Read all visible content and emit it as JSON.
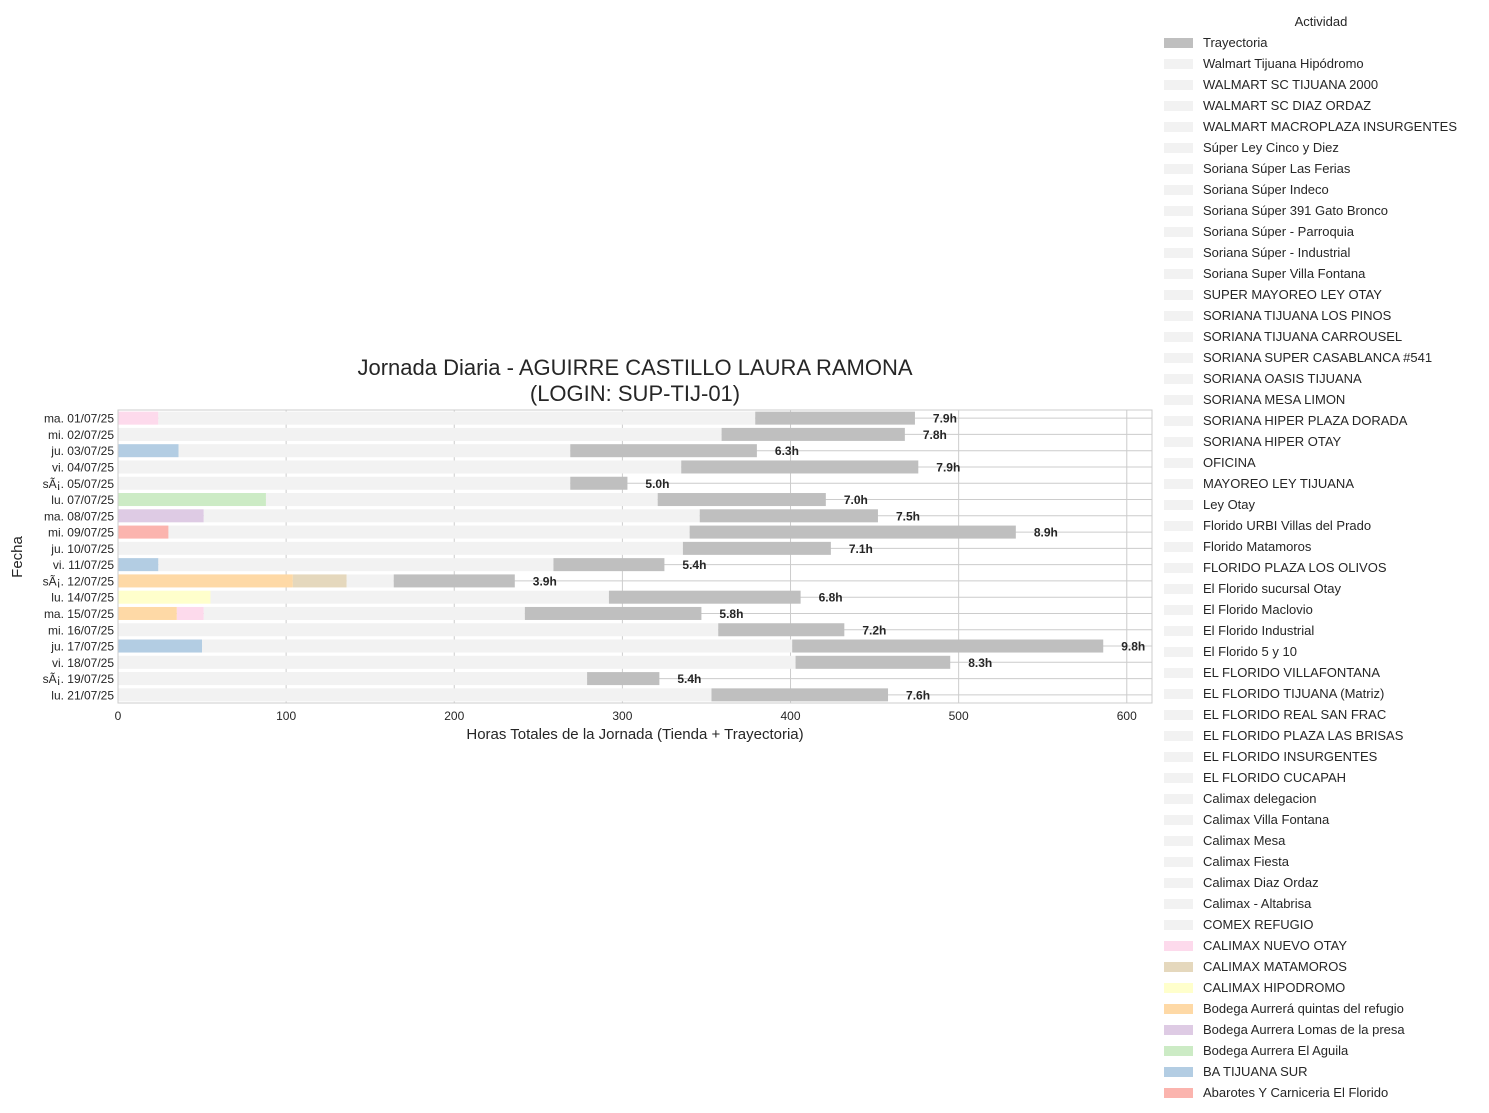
{
  "chart_data": {
    "type": "bar",
    "orientation": "horizontal",
    "stacked": true,
    "title": "Jornada Diaria - AGUIRRE CASTILLO LAURA RAMONA",
    "subtitle": "(LOGIN: SUP-TIJ-01)",
    "xlabel": "Horas Totales de la Jornada (Tienda + Trayectoria)",
    "ylabel": "Fecha",
    "xlim": [
      0,
      615
    ],
    "xticks": [
      0,
      100,
      200,
      300,
      400,
      500,
      600
    ],
    "grid": true,
    "legend_title": "Actividad",
    "legend_position": "right",
    "colors": {
      "Trayectoria": "#bfbfbf",
      "store_default": "#f2f2f2",
      "CALIMAX NUEVO OTAY": "#fddaec",
      "CALIMAX MATAMOROS": "#e5d8bd",
      "CALIMAX HIPODROMO": "#ffffcc",
      "Bodega Aurrerá quintas del refugio": "#fed9a6",
      "Bodega Aurrera Lomas de la presa": "#decbe4",
      "Bodega Aurrera El Aguila": "#ccebc5",
      "BA TIJUANA SUR": "#b3cde3",
      "Abarotes Y Carniceria El Florido": "#fbb4ae"
    },
    "legend": [
      "Trayectoria",
      "Walmart Tijuana Hipódromo",
      "WALMART SC TIJUANA 2000",
      "WALMART SC DIAZ ORDAZ",
      "WALMART MACROPLAZA INSURGENTES",
      "Súper Ley Cinco y Diez",
      "Soriana Súper Las Ferias",
      "Soriana Súper Indeco",
      "Soriana Súper 391 Gato Bronco",
      "Soriana Súper - Parroquia",
      "Soriana Súper - Industrial",
      "Soriana Super Villa Fontana",
      "SUPER MAYOREO LEY OTAY",
      "SORIANA TIJUANA LOS PINOS",
      "SORIANA TIJUANA CARROUSEL",
      "SORIANA SUPER CASABLANCA #541",
      "SORIANA OASIS TIJUANA",
      "SORIANA MESA LIMON",
      "SORIANA HIPER PLAZA DORADA",
      "SORIANA HIPER OTAY",
      "OFICINA",
      "MAYOREO LEY TIJUANA",
      "Ley Otay",
      "Florido URBI Villas del Prado",
      "Florido Matamoros",
      "FLORIDO PLAZA LOS OLIVOS",
      "El Florido sucursal Otay",
      "El Florido Maclovio",
      "El Florido Industrial",
      "El Florido 5 y 10",
      "EL FLORIDO VILLAFONTANA",
      "EL FLORIDO TIJUANA (Matriz)",
      "EL FLORIDO REAL SAN FRAC",
      "EL FLORIDO PLAZA LAS BRISAS",
      "EL FLORIDO INSURGENTES",
      "EL FLORIDO CUCAPAH",
      "Calimax delegacion",
      "Calimax Villa Fontana",
      "Calimax Mesa",
      "Calimax Fiesta",
      "Calimax Diaz Ordaz",
      "Calimax - Altabrisa",
      "COMEX REFUGIO",
      "CALIMAX NUEVO OTAY",
      "CALIMAX MATAMOROS",
      "CALIMAX HIPODROMO",
      "Bodega Aurrerá quintas del refugio",
      "Bodega Aurrera Lomas de la presa",
      "Bodega Aurrera El Aguila",
      "BA TIJUANA SUR",
      "Abarotes Y Carniceria El Florido"
    ],
    "rows": [
      {
        "date": "lu. 21/07/25",
        "label": "7.6h",
        "segments": [
          {
            "activity": "store",
            "value": 353
          },
          {
            "activity": "Trayectoria",
            "value": 105
          }
        ]
      },
      {
        "date": "sÃ¡. 19/07/25",
        "label": "5.4h",
        "segments": [
          {
            "activity": "store",
            "value": 279
          },
          {
            "activity": "Trayectoria",
            "value": 43
          }
        ]
      },
      {
        "date": "vi. 18/07/25",
        "label": "8.3h",
        "segments": [
          {
            "activity": "store",
            "value": 403
          },
          {
            "activity": "Trayectoria",
            "value": 92
          }
        ]
      },
      {
        "date": "ju. 17/07/25",
        "label": "9.8h",
        "segments": [
          {
            "activity": "BA TIJUANA SUR",
            "value": 50
          },
          {
            "activity": "store",
            "value": 351
          },
          {
            "activity": "Trayectoria",
            "value": 185
          }
        ]
      },
      {
        "date": "mi. 16/07/25",
        "label": "7.2h",
        "segments": [
          {
            "activity": "store",
            "value": 357
          },
          {
            "activity": "Trayectoria",
            "value": 75
          }
        ]
      },
      {
        "date": "ma. 15/07/25",
        "label": "5.8h",
        "segments": [
          {
            "activity": "Bodega Aurrerá quintas del refugio",
            "value": 35
          },
          {
            "activity": "CALIMAX NUEVO OTAY",
            "value": 16
          },
          {
            "activity": "store",
            "value": 191
          },
          {
            "activity": "Trayectoria",
            "value": 105
          }
        ]
      },
      {
        "date": "lu. 14/07/25",
        "label": "6.8h",
        "segments": [
          {
            "activity": "CALIMAX HIPODROMO",
            "value": 55
          },
          {
            "activity": "store",
            "value": 237
          },
          {
            "activity": "Trayectoria",
            "value": 114
          }
        ]
      },
      {
        "date": "sÃ¡. 12/07/25",
        "label": "3.9h",
        "segments": [
          {
            "activity": "Bodega Aurrerá quintas del refugio",
            "value": 104
          },
          {
            "activity": "CALIMAX MATAMOROS",
            "value": 32
          },
          {
            "activity": "store",
            "value": 28
          },
          {
            "activity": "Trayectoria",
            "value": 72
          }
        ]
      },
      {
        "date": "vi. 11/07/25",
        "label": "5.4h",
        "segments": [
          {
            "activity": "BA TIJUANA SUR",
            "value": 24
          },
          {
            "activity": "store",
            "value": 235
          },
          {
            "activity": "Trayectoria",
            "value": 66
          }
        ]
      },
      {
        "date": "ju. 10/07/25",
        "label": "7.1h",
        "segments": [
          {
            "activity": "store",
            "value": 336
          },
          {
            "activity": "Trayectoria",
            "value": 88
          }
        ]
      },
      {
        "date": "mi. 09/07/25",
        "label": "8.9h",
        "segments": [
          {
            "activity": "Abarotes Y Carniceria El Florido",
            "value": 30
          },
          {
            "activity": "store",
            "value": 310
          },
          {
            "activity": "Trayectoria",
            "value": 194
          }
        ]
      },
      {
        "date": "ma. 08/07/25",
        "label": "7.5h",
        "segments": [
          {
            "activity": "Bodega Aurrera Lomas de la presa",
            "value": 51
          },
          {
            "activity": "store",
            "value": 295
          },
          {
            "activity": "Trayectoria",
            "value": 106
          }
        ]
      },
      {
        "date": "lu. 07/07/25",
        "label": "7.0h",
        "segments": [
          {
            "activity": "Bodega Aurrera El Aguila",
            "value": 88
          },
          {
            "activity": "store",
            "value": 233
          },
          {
            "activity": "Trayectoria",
            "value": 100
          }
        ]
      },
      {
        "date": "sÃ¡. 05/07/25",
        "label": "5.0h",
        "segments": [
          {
            "activity": "store",
            "value": 269
          },
          {
            "activity": "Trayectoria",
            "value": 34
          }
        ]
      },
      {
        "date": "vi. 04/07/25",
        "label": "7.9h",
        "segments": [
          {
            "activity": "store",
            "value": 335
          },
          {
            "activity": "Trayectoria",
            "value": 141
          }
        ]
      },
      {
        "date": "ju. 03/07/25",
        "label": "6.3h",
        "segments": [
          {
            "activity": "BA TIJUANA SUR",
            "value": 36
          },
          {
            "activity": "store",
            "value": 233
          },
          {
            "activity": "Trayectoria",
            "value": 111
          }
        ]
      },
      {
        "date": "mi. 02/07/25",
        "label": "7.8h",
        "segments": [
          {
            "activity": "store",
            "value": 359
          },
          {
            "activity": "Trayectoria",
            "value": 109
          }
        ]
      },
      {
        "date": "ma. 01/07/25",
        "label": "7.9h",
        "segments": [
          {
            "activity": "CALIMAX NUEVO OTAY",
            "value": 24
          },
          {
            "activity": "store",
            "value": 355
          },
          {
            "activity": "Trayectoria",
            "value": 95
          }
        ]
      }
    ]
  }
}
